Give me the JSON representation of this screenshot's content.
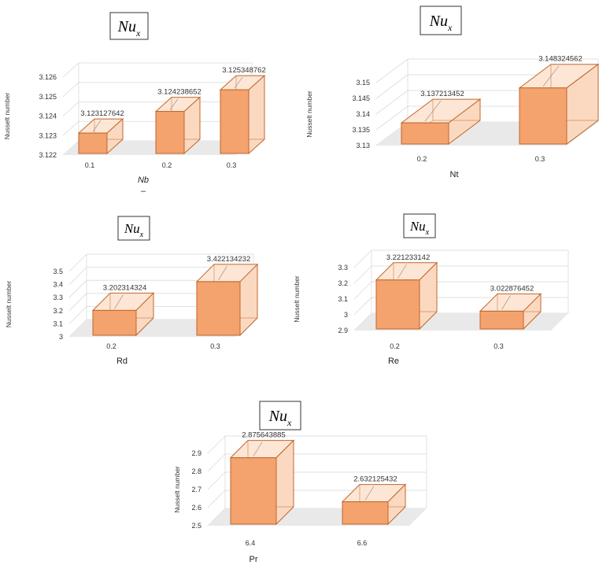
{
  "colors": {
    "bar_front": "#f4a26e",
    "bar_side": "#fbd9c1",
    "bar_top": "#fde6d5",
    "bar_edge": "#c0672a",
    "floor": "#e9e9e9",
    "grid": "#d9d9d9"
  },
  "chart_data": [
    {
      "type": "bar",
      "title_main": "Nu",
      "title_sub": "x",
      "ylabel": "Nusselt number",
      "xlabel": "Nb",
      "xlabel_extra": "–",
      "categories": [
        "0.1",
        "0.2",
        "0.3"
      ],
      "values": [
        3.123127642,
        3.124238652,
        3.125348762
      ],
      "value_labels": [
        "3.123127642",
        "3.124238652",
        "3.125348762"
      ],
      "ylim": [
        3.122,
        3.126
      ],
      "yticks": [
        "3.122",
        "3.123",
        "3.124",
        "3.125",
        "3.126"
      ]
    },
    {
      "type": "bar",
      "title_main": "Nu",
      "title_sub": "x",
      "ylabel": "Nusselt number",
      "xlabel": "Nt",
      "categories": [
        "0.2",
        "0.3"
      ],
      "values": [
        3.137213452,
        3.148324562
      ],
      "value_labels": [
        "3.137213452",
        "3.148324562"
      ],
      "ylim": [
        3.13,
        3.15
      ],
      "yticks": [
        "3.13",
        "3.135",
        "3.14",
        "3.145",
        "3.15"
      ]
    },
    {
      "type": "bar",
      "title_main": "Nu",
      "title_sub": "x",
      "ylabel": "Nusselt number",
      "xlabel": "Rd",
      "categories": [
        "0.2",
        "0.3"
      ],
      "values": [
        3.202314324,
        3.422134232
      ],
      "value_labels": [
        "3.202314324",
        "3.422134232"
      ],
      "ylim": [
        3.0,
        3.5
      ],
      "yticks": [
        "3",
        "3.1",
        "3.2",
        "3.3",
        "3.4",
        "3.5"
      ]
    },
    {
      "type": "bar",
      "title_main": "Nu",
      "title_sub": "x",
      "ylabel": "Nusselt number",
      "xlabel": "Re",
      "categories": [
        "0.2",
        "0.3"
      ],
      "values": [
        3.221233142,
        3.022876452
      ],
      "value_labels": [
        "3.221233142",
        "3.022876452"
      ],
      "ylim": [
        2.9,
        3.3
      ],
      "yticks": [
        "2.9",
        "3",
        "3.1",
        "3.2",
        "3.3"
      ]
    },
    {
      "type": "bar",
      "title_main": "Nu",
      "title_sub": "x",
      "ylabel": "Nusselt number",
      "xlabel": "Pr",
      "categories": [
        "6.4",
        "6.6"
      ],
      "values": [
        2.875643885,
        2.632125432
      ],
      "value_labels": [
        "2.875643885",
        "2.632125432"
      ],
      "ylim": [
        2.5,
        2.9
      ],
      "yticks": [
        "2.5",
        "2.6",
        "2.7",
        "2.8",
        "2.9"
      ]
    }
  ]
}
